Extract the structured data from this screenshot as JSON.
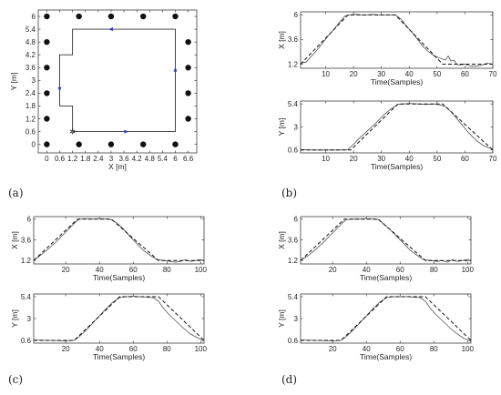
{
  "panel_labels": [
    "(a)",
    "(b)",
    "(c)",
    "(d)"
  ],
  "chart_data": [
    {
      "id": "a",
      "type": "scatter",
      "xlabel": "X [m]",
      "ylabel": "Y [m]",
      "xlim": [
        -0.4,
        7.0
      ],
      "ylim": [
        -0.4,
        6.3
      ],
      "xticks": [
        "0",
        "0.6",
        "1.2",
        "1.8",
        "2.4",
        "3",
        "3.6",
        "4.2",
        "4.8",
        "5.4",
        "6",
        "6.6"
      ],
      "xtick_values": [
        0,
        0.6,
        1.2,
        1.8,
        2.4,
        3,
        3.6,
        4.2,
        4.8,
        5.4,
        6,
        6.6
      ],
      "yticks": [
        "0",
        "0.6",
        "1.2",
        "1.8",
        "2.4",
        "3",
        "3.6",
        "4.2",
        "4.8",
        "5.4",
        "6"
      ],
      "ytick_values": [
        0,
        0.6,
        1.2,
        1.8,
        2.4,
        3,
        3.6,
        4.2,
        4.8,
        5.4,
        6
      ],
      "grid": false,
      "anchors": [
        [
          0,
          0
        ],
        [
          1.5,
          0
        ],
        [
          3,
          0
        ],
        [
          4.5,
          0
        ],
        [
          6,
          0
        ],
        [
          0,
          1.2
        ],
        [
          6.6,
          1.2
        ],
        [
          0,
          2.4
        ],
        [
          6.6,
          2.4
        ],
        [
          0,
          3.6
        ],
        [
          6.6,
          3.6
        ],
        [
          0,
          4.8
        ],
        [
          6.6,
          4.8
        ],
        [
          0,
          6
        ],
        [
          1.5,
          6
        ],
        [
          3,
          6
        ],
        [
          4.5,
          6
        ],
        [
          6,
          6
        ]
      ],
      "path": [
        [
          1.2,
          0.6
        ],
        [
          6,
          0.6
        ],
        [
          6,
          5.4
        ],
        [
          1.2,
          5.4
        ],
        [
          1.2,
          4.2
        ],
        [
          0.6,
          4.2
        ],
        [
          0.6,
          1.8
        ],
        [
          1.2,
          1.8
        ],
        [
          1.2,
          0.6
        ]
      ],
      "start": [
        1.2,
        0.6
      ],
      "arrows": [
        {
          "at": [
            3.7,
            0.6
          ],
          "dir": "right"
        },
        {
          "at": [
            6,
            3.5
          ],
          "dir": "up"
        },
        {
          "at": [
            3.0,
            5.4
          ],
          "dir": "left"
        },
        {
          "at": [
            0.6,
            2.6
          ],
          "dir": "down"
        }
      ]
    },
    {
      "id": "b-x",
      "type": "line",
      "xlabel": "Time(Samples)",
      "ylabel": "X [m]",
      "xlim": [
        1,
        70
      ],
      "ylim": [
        0.8,
        6.3
      ],
      "xticks": [
        "10",
        "20",
        "30",
        "40",
        "50",
        "60",
        "70"
      ],
      "xtick_values": [
        10,
        20,
        30,
        40,
        50,
        60,
        70
      ],
      "yticks": [
        "1.2",
        "3.6",
        "6"
      ],
      "ytick_values": [
        1.2,
        3.6,
        6
      ],
      "series": [
        {
          "style": "solid",
          "x": [
            1,
            3,
            5,
            7,
            9,
            11,
            13,
            15,
            17,
            19,
            21,
            23,
            25,
            27,
            29,
            31,
            33,
            35,
            37,
            39,
            41,
            43,
            45,
            47,
            49,
            51,
            53,
            54,
            55,
            56,
            57,
            58,
            60,
            62,
            64,
            66,
            68,
            70
          ],
          "y": [
            1.3,
            1.4,
            2.0,
            2.6,
            3.3,
            4.0,
            4.6,
            5.3,
            5.9,
            6.0,
            6.05,
            6.0,
            6.0,
            6.05,
            6.0,
            6.0,
            6.0,
            6.0,
            5.6,
            4.9,
            4.3,
            3.6,
            2.9,
            2.4,
            2.0,
            1.8,
            1.6,
            2.0,
            1.5,
            1.6,
            1.2,
            1.1,
            1.2,
            1.0,
            1.0,
            1.1,
            1.3,
            1.2
          ]
        },
        {
          "style": "dashed",
          "x": [
            1,
            18,
            35,
            52,
            58,
            70
          ],
          "y": [
            1.2,
            6.0,
            6.0,
            1.2,
            1.2,
            1.2
          ]
        }
      ]
    },
    {
      "id": "b-y",
      "type": "line",
      "xlabel": "Time(Samples)",
      "ylabel": "Y [m]",
      "xlim": [
        1,
        70
      ],
      "ylim": [
        0.3,
        5.7
      ],
      "xticks": [
        "10",
        "20",
        "30",
        "40",
        "50",
        "60",
        "70"
      ],
      "xtick_values": [
        10,
        20,
        30,
        40,
        50,
        60,
        70
      ],
      "yticks": [
        "0.6",
        "3",
        "5.4"
      ],
      "ytick_values": [
        0.6,
        3,
        5.4
      ],
      "series": [
        {
          "style": "solid",
          "x": [
            1,
            5,
            10,
            15,
            18,
            20,
            22,
            25,
            28,
            31,
            34,
            36,
            38,
            40,
            43,
            46,
            49,
            51,
            53,
            55,
            57,
            59,
            61,
            63,
            65,
            67,
            70
          ],
          "y": [
            0.65,
            0.6,
            0.6,
            0.6,
            0.65,
            1.2,
            1.8,
            2.6,
            3.4,
            4.3,
            5.0,
            5.35,
            5.4,
            5.45,
            5.4,
            5.35,
            5.4,
            5.3,
            5.1,
            4.6,
            3.9,
            3.2,
            2.5,
            1.9,
            1.4,
            1.0,
            0.7
          ]
        },
        {
          "style": "dashed",
          "x": [
            1,
            19,
            36,
            52,
            70
          ],
          "y": [
            0.6,
            0.6,
            5.4,
            5.4,
            0.6
          ]
        }
      ]
    },
    {
      "id": "c-x",
      "type": "line",
      "xlabel": "Time(Samples)",
      "ylabel": "X [m]",
      "xlim": [
        1,
        102
      ],
      "ylim": [
        0.8,
        6.3
      ],
      "xticks": [
        "20",
        "40",
        "60",
        "80",
        "100"
      ],
      "xtick_values": [
        20,
        40,
        60,
        80,
        100
      ],
      "yticks": [
        "1.2",
        "3.6",
        "6"
      ],
      "ytick_values": [
        1.2,
        3.6,
        6
      ],
      "series": [
        {
          "style": "solid",
          "x": [
            1,
            5,
            10,
            15,
            20,
            25,
            28,
            32,
            36,
            40,
            44,
            47,
            50,
            54,
            58,
            62,
            66,
            70,
            74,
            78,
            82,
            85,
            88,
            91,
            94,
            97,
            100,
            102
          ],
          "y": [
            1.2,
            1.8,
            2.6,
            3.5,
            4.5,
            5.5,
            6.0,
            6.05,
            6.0,
            6.05,
            6.0,
            5.95,
            5.6,
            4.9,
            4.0,
            3.2,
            2.4,
            1.8,
            1.3,
            1.2,
            1.1,
            1.0,
            1.1,
            1.3,
            1.1,
            1.2,
            1.3,
            1.2
          ]
        },
        {
          "style": "dashed",
          "x": [
            1,
            27,
            47,
            75,
            102
          ],
          "y": [
            1.2,
            6.0,
            6.0,
            1.2,
            1.2
          ]
        }
      ]
    },
    {
      "id": "c-y",
      "type": "line",
      "xlabel": "Time(Samples)",
      "ylabel": "Y [m]",
      "xlim": [
        1,
        102
      ],
      "ylim": [
        0.3,
        5.7
      ],
      "xticks": [
        "20",
        "40",
        "60",
        "80",
        "100"
      ],
      "xtick_values": [
        20,
        40,
        60,
        80,
        100
      ],
      "yticks": [
        "0.6",
        "3",
        "5.4"
      ],
      "ytick_values": [
        0.6,
        3,
        5.4
      ],
      "series": [
        {
          "style": "solid",
          "x": [
            1,
            10,
            20,
            25,
            28,
            32,
            36,
            40,
            44,
            48,
            52,
            56,
            60,
            64,
            68,
            72,
            75,
            78,
            82,
            86,
            90,
            94,
            98,
            102
          ],
          "y": [
            0.65,
            0.6,
            0.55,
            0.6,
            1.0,
            1.7,
            2.5,
            3.3,
            4.1,
            4.8,
            5.3,
            5.4,
            5.45,
            5.4,
            5.35,
            5.3,
            4.9,
            4.1,
            3.3,
            2.6,
            1.9,
            1.3,
            0.9,
            0.55
          ]
        },
        {
          "style": "dashed",
          "x": [
            1,
            25,
            52,
            75,
            102
          ],
          "y": [
            0.6,
            0.6,
            5.4,
            5.4,
            0.6
          ]
        }
      ]
    },
    {
      "id": "d-x",
      "type": "line",
      "xlabel": "Time(Samples)",
      "ylabel": "X [m]",
      "xlim": [
        1,
        102
      ],
      "ylim": [
        0.8,
        6.3
      ],
      "xticks": [
        "20",
        "40",
        "60",
        "80",
        "100"
      ],
      "xtick_values": [
        20,
        40,
        60,
        80,
        100
      ],
      "yticks": [
        "1.2",
        "3.6",
        "6"
      ],
      "ytick_values": [
        1.2,
        3.6,
        6
      ],
      "series": [
        {
          "style": "solid",
          "x": [
            1,
            5,
            10,
            15,
            20,
            25,
            28,
            32,
            36,
            40,
            44,
            47,
            50,
            54,
            58,
            62,
            66,
            70,
            74,
            78,
            82,
            85,
            88,
            91,
            94,
            97,
            100,
            102
          ],
          "y": [
            1.2,
            1.7,
            2.5,
            3.4,
            4.4,
            5.4,
            5.95,
            6.0,
            6.0,
            6.05,
            6.0,
            5.95,
            5.5,
            4.8,
            4.0,
            3.2,
            2.4,
            1.8,
            1.3,
            1.2,
            1.1,
            1.2,
            1.0,
            1.3,
            1.1,
            1.2,
            1.3,
            1.2
          ]
        },
        {
          "style": "dashed",
          "x": [
            1,
            27,
            47,
            75,
            102
          ],
          "y": [
            1.2,
            6.0,
            6.0,
            1.2,
            1.2
          ]
        }
      ]
    },
    {
      "id": "d-y",
      "type": "line",
      "xlabel": "Time(Samples)",
      "ylabel": "Y [m]",
      "xlim": [
        1,
        102
      ],
      "ylim": [
        0.3,
        5.7
      ],
      "xticks": [
        "20",
        "40",
        "60",
        "80",
        "100"
      ],
      "xtick_values": [
        20,
        40,
        60,
        80,
        100
      ],
      "yticks": [
        "0.6",
        "3",
        "5.4"
      ],
      "ytick_values": [
        0.6,
        3,
        5.4
      ],
      "series": [
        {
          "style": "solid",
          "x": [
            1,
            10,
            20,
            25,
            28,
            32,
            36,
            40,
            44,
            48,
            52,
            56,
            60,
            64,
            68,
            72,
            75,
            78,
            82,
            86,
            90,
            94,
            98,
            102
          ],
          "y": [
            0.65,
            0.6,
            0.55,
            0.6,
            1.0,
            1.7,
            2.5,
            3.3,
            4.1,
            4.8,
            5.3,
            5.4,
            5.4,
            5.4,
            5.35,
            5.3,
            4.9,
            4.1,
            3.3,
            2.6,
            1.9,
            1.3,
            0.8,
            0.5
          ]
        },
        {
          "style": "dashed",
          "x": [
            1,
            25,
            52,
            75,
            102
          ],
          "y": [
            0.6,
            0.6,
            5.4,
            5.4,
            0.6
          ]
        }
      ]
    }
  ]
}
